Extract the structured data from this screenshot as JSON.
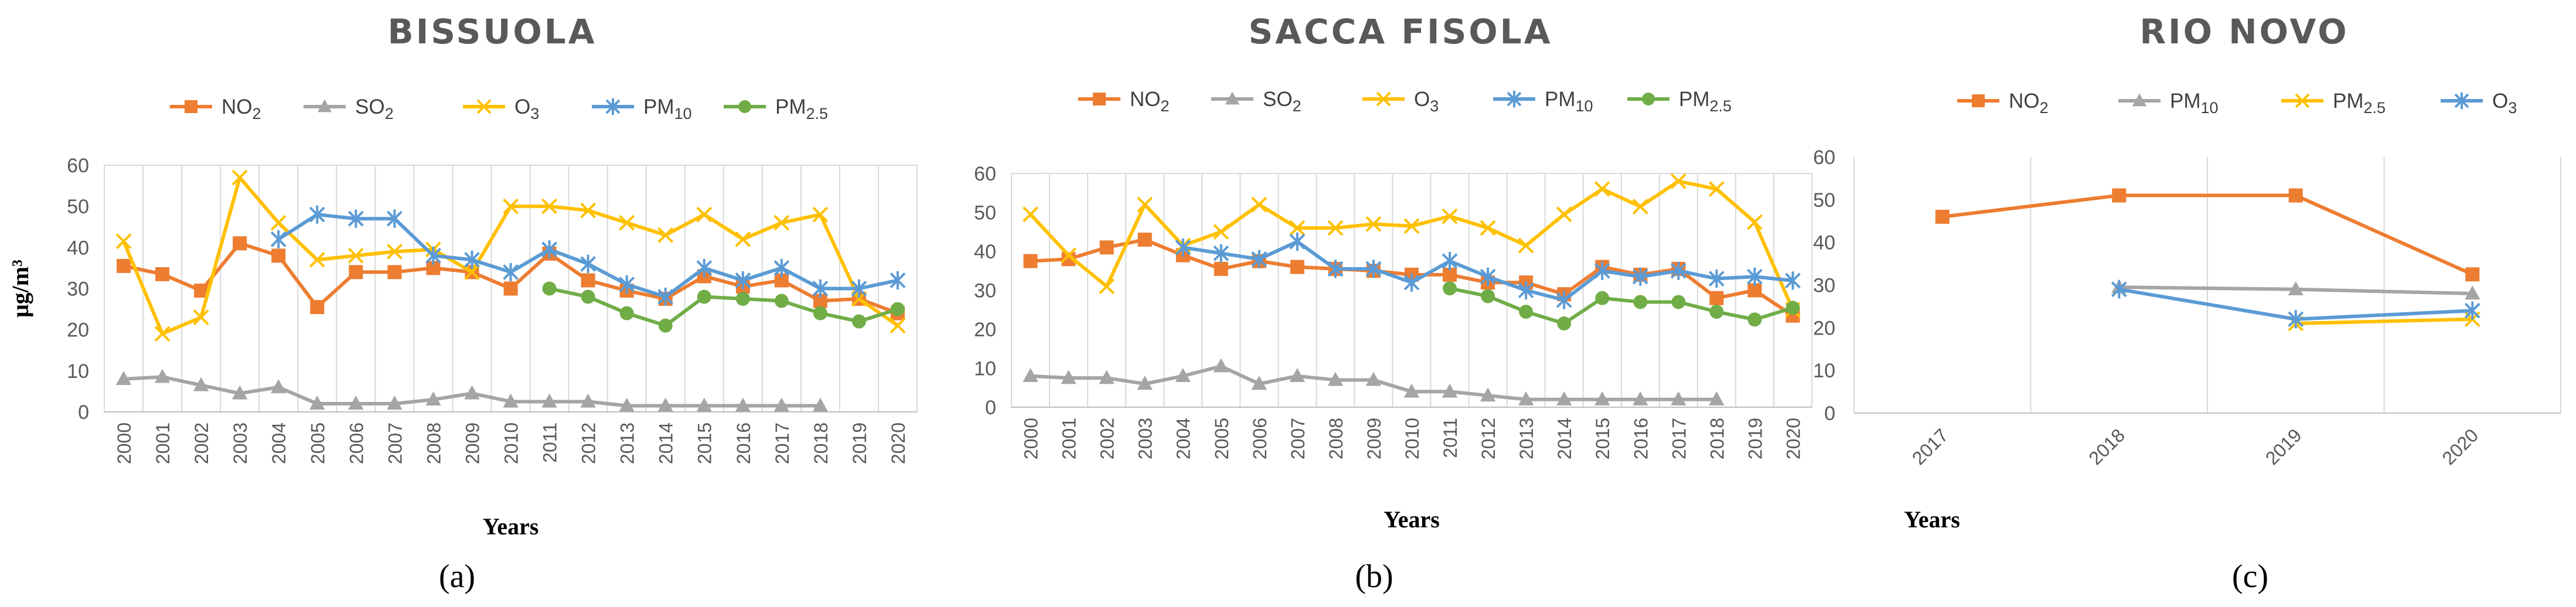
{
  "chart_data": [
    {
      "type": "line",
      "panel_caption": "(a)",
      "title": "BISSUOLA",
      "xlabel": "Years",
      "ylabel": "μg/m³",
      "ylim": [
        0,
        60
      ],
      "yticks": [
        0,
        10,
        20,
        30,
        40,
        50,
        60
      ],
      "grid": "vertical",
      "legend_position": "top",
      "categories": [
        "2000",
        "2001",
        "2002",
        "2003",
        "2004",
        "2005",
        "2006",
        "2007",
        "2008",
        "2009",
        "2010",
        "2011",
        "2012",
        "2013",
        "2014",
        "2015",
        "2016",
        "2017",
        "2018",
        "2019",
        "2020"
      ],
      "series": [
        {
          "name": "NO2",
          "base": "NO",
          "sub": "2",
          "color": "#ED7D31",
          "marker": "square",
          "values": [
            35.5,
            33.5,
            29.5,
            41,
            38,
            25.5,
            34,
            34,
            35,
            34,
            30,
            38.5,
            32,
            29.5,
            27.5,
            33,
            30.5,
            32,
            27,
            27.5,
            24
          ]
        },
        {
          "name": "SO2",
          "base": "SO",
          "sub": "2",
          "color": "#A5A5A5",
          "marker": "triangle",
          "values": [
            8,
            8.5,
            6.5,
            4.5,
            6,
            2,
            2,
            2,
            3,
            4.5,
            2.5,
            2.5,
            2.5,
            1.5,
            1.5,
            1.5,
            1.5,
            1.5,
            1.5,
            null,
            null
          ]
        },
        {
          "name": "O3",
          "base": "O",
          "sub": "3",
          "color": "#FFC000",
          "marker": "x",
          "values": [
            41.5,
            19,
            23,
            57,
            46,
            37,
            38,
            39,
            39.5,
            34,
            50,
            50,
            49,
            46,
            43,
            48,
            42,
            46,
            48,
            27.5,
            21
          ]
        },
        {
          "name": "PM10",
          "base": "PM",
          "sub": "10",
          "color": "#5B9BD5",
          "marker": "star",
          "values": [
            null,
            null,
            null,
            null,
            42,
            48,
            47,
            47,
            38,
            37,
            34,
            39.5,
            36,
            31,
            28,
            35,
            32,
            35,
            30,
            30,
            32
          ]
        },
        {
          "name": "PM2.5",
          "base": "PM",
          "sub": "2.5",
          "color": "#70AD47",
          "marker": "circle",
          "values": [
            null,
            null,
            null,
            null,
            null,
            null,
            null,
            null,
            null,
            null,
            null,
            30,
            28,
            24,
            21,
            28,
            27.5,
            27,
            24,
            22,
            25
          ]
        }
      ]
    },
    {
      "type": "line",
      "panel_caption": "(b)",
      "title": "SACCA FISOLA",
      "xlabel": "Years",
      "ylabel": "",
      "ylim": [
        0,
        60
      ],
      "yticks": [
        0,
        10,
        20,
        30,
        40,
        50,
        60
      ],
      "grid": "vertical",
      "legend_position": "top",
      "categories": [
        "2000",
        "2001",
        "2002",
        "2003",
        "2004",
        "2005",
        "2006",
        "2007",
        "2008",
        "2009",
        "2010",
        "2011",
        "2012",
        "2013",
        "2014",
        "2015",
        "2016",
        "2017",
        "2018",
        "2019",
        "2020"
      ],
      "series": [
        {
          "name": "NO2",
          "base": "NO",
          "sub": "2",
          "color": "#ED7D31",
          "marker": "square",
          "values": [
            37.5,
            38,
            41,
            43,
            39,
            35.5,
            37.5,
            36,
            35.5,
            35,
            34,
            34,
            32,
            32,
            29,
            36,
            34,
            35.5,
            28,
            30,
            23.5
          ]
        },
        {
          "name": "SO2",
          "base": "SO",
          "sub": "2",
          "color": "#A5A5A5",
          "marker": "triangle",
          "values": [
            8,
            7.5,
            7.5,
            6,
            8,
            10.5,
            6,
            8,
            7,
            7,
            4,
            4,
            3,
            2,
            2,
            2,
            2,
            2,
            2,
            null,
            null
          ]
        },
        {
          "name": "O3",
          "base": "O",
          "sub": "3",
          "color": "#FFC000",
          "marker": "x",
          "values": [
            49.5,
            39,
            31,
            52,
            41.5,
            45,
            52,
            46,
            46,
            47,
            46.5,
            49,
            46,
            41.5,
            49.5,
            56,
            51.5,
            58,
            56,
            47.5,
            25
          ]
        },
        {
          "name": "PM10",
          "base": "PM",
          "sub": "10",
          "color": "#5B9BD5",
          "marker": "star",
          "values": [
            null,
            null,
            null,
            null,
            41,
            39.5,
            38,
            42.5,
            35.5,
            35.5,
            32,
            37.5,
            33.5,
            30,
            27.5,
            35,
            33.5,
            35,
            33,
            33.5,
            32.5
          ]
        },
        {
          "name": "PM2.5",
          "base": "PM",
          "sub": "2.5",
          "color": "#70AD47",
          "marker": "circle",
          "values": [
            null,
            null,
            null,
            null,
            null,
            null,
            null,
            null,
            null,
            null,
            null,
            30.5,
            28.5,
            24.5,
            21.5,
            28,
            27,
            27,
            24.5,
            22.5,
            25.5
          ]
        }
      ]
    },
    {
      "type": "line",
      "panel_caption": "(c)",
      "title": "RIO NOVO",
      "xlabel": "Years",
      "ylabel": "",
      "ylim": [
        0,
        60
      ],
      "yticks": [
        0,
        10,
        20,
        30,
        40,
        50,
        60
      ],
      "grid": "vertical",
      "legend_position": "top",
      "categories": [
        "2017",
        "2018",
        "2019",
        "2020"
      ],
      "series": [
        {
          "name": "NO2",
          "base": "NO",
          "sub": "2",
          "color": "#ED7D31",
          "marker": "square",
          "values": [
            46,
            51,
            51,
            32.5
          ]
        },
        {
          "name": "PM10",
          "base": "PM",
          "sub": "10",
          "color": "#A5A5A5",
          "marker": "triangle",
          "values": [
            null,
            29.5,
            29,
            28
          ]
        },
        {
          "name": "PM2.5",
          "base": "PM",
          "sub": "2.5",
          "color": "#FFC000",
          "marker": "x",
          "values": [
            null,
            null,
            21,
            22
          ]
        },
        {
          "name": "O3",
          "base": "O",
          "sub": "3",
          "color": "#5B9BD5",
          "marker": "star",
          "values": [
            null,
            29,
            22,
            24
          ]
        }
      ]
    }
  ]
}
